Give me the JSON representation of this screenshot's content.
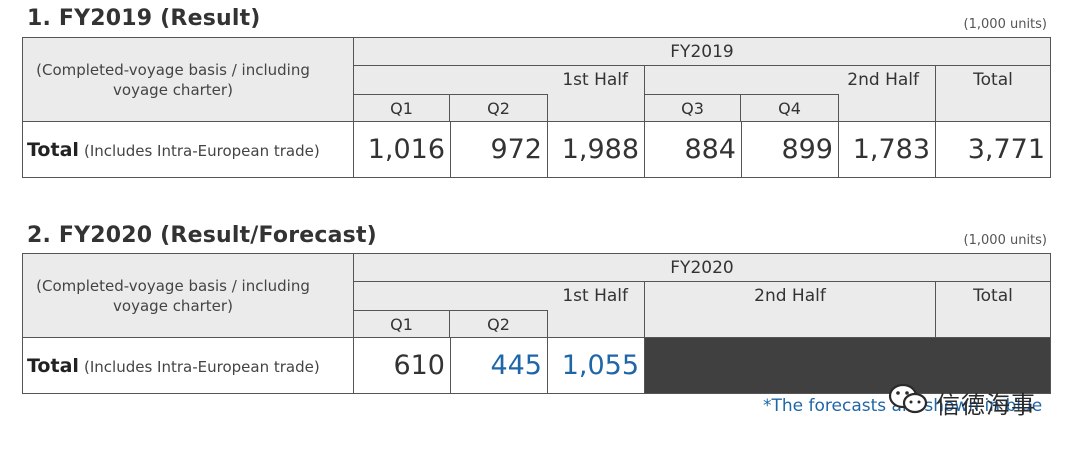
{
  "section1": {
    "title": "1. FY2019 (Result)",
    "units": "(1,000 units)",
    "period": "FY2019",
    "description": "(Completed-voyage basis / including voyage charter)",
    "first_half": "1st Half",
    "second_half": "2nd Half",
    "total_header": "Total",
    "q1": "Q1",
    "q2": "Q2",
    "q3": "Q3",
    "q4": "Q4",
    "row_label": "Total",
    "row_sublabel": "(Includes Intra-European trade)",
    "values": {
      "q1": "1,016",
      "q2": "972",
      "h1": "1,988",
      "q3": "884",
      "q4": "899",
      "h2": "1,783",
      "total": "3,771"
    }
  },
  "section2": {
    "title": "2. FY2020 (Result/Forecast)",
    "units": "(1,000 units)",
    "period": "FY2020",
    "description": "(Completed-voyage basis / including voyage charter)",
    "first_half": "1st Half",
    "second_half": "2nd Half",
    "total_header": "Total",
    "q1": "Q1",
    "q2": "Q2",
    "row_label": "Total",
    "row_sublabel": "(Includes Intra-European trade)",
    "values": {
      "q1": "610",
      "q2": "445",
      "h1": "1,055"
    },
    "forecast_note": "*The forecasts are shown in blue"
  },
  "watermark": {
    "text": "信德海事",
    "icon": "wechat-icon"
  },
  "colors": {
    "header_bg": "#ebebeb",
    "border": "#555555",
    "forecast_blue": "#1f66a8",
    "dark_fill": "#404040"
  }
}
